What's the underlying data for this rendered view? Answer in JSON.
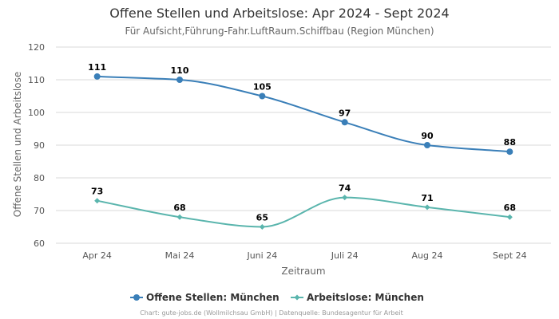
{
  "chart_data": {
    "type": "line",
    "title": "Offene Stellen und Arbeitslose: Apr 2024 - Sept 2024",
    "subtitle": "Für Aufsicht,Führung-Fahr.LuftRaum.Schiffbau (Region München)",
    "xlabel": "Zeitraum",
    "ylabel": "Offene Stellen und Arbeitslose",
    "categories": [
      "Apr 24",
      "Mai 24",
      "Juni 24",
      "Juli 24",
      "Aug 24",
      "Sept 24"
    ],
    "ylim": [
      60,
      120
    ],
    "yticks": [
      60,
      70,
      80,
      90,
      100,
      110,
      120
    ],
    "grid": true,
    "legend_position": "bottom-center",
    "series": [
      {
        "name": "Offene Stellen: München",
        "values": [
          111,
          110,
          105,
          97,
          90,
          88
        ],
        "color": "#3a7fb8",
        "marker": "circle"
      },
      {
        "name": "Arbeitslose: München",
        "values": [
          73,
          68,
          65,
          74,
          71,
          68
        ],
        "color": "#5ab5ad",
        "marker": "diamond"
      }
    ],
    "credits": "Chart: gute-jobs.de (Wollmilchsau GmbH) | Datenquelle: Bundesagentur für Arbeit"
  }
}
